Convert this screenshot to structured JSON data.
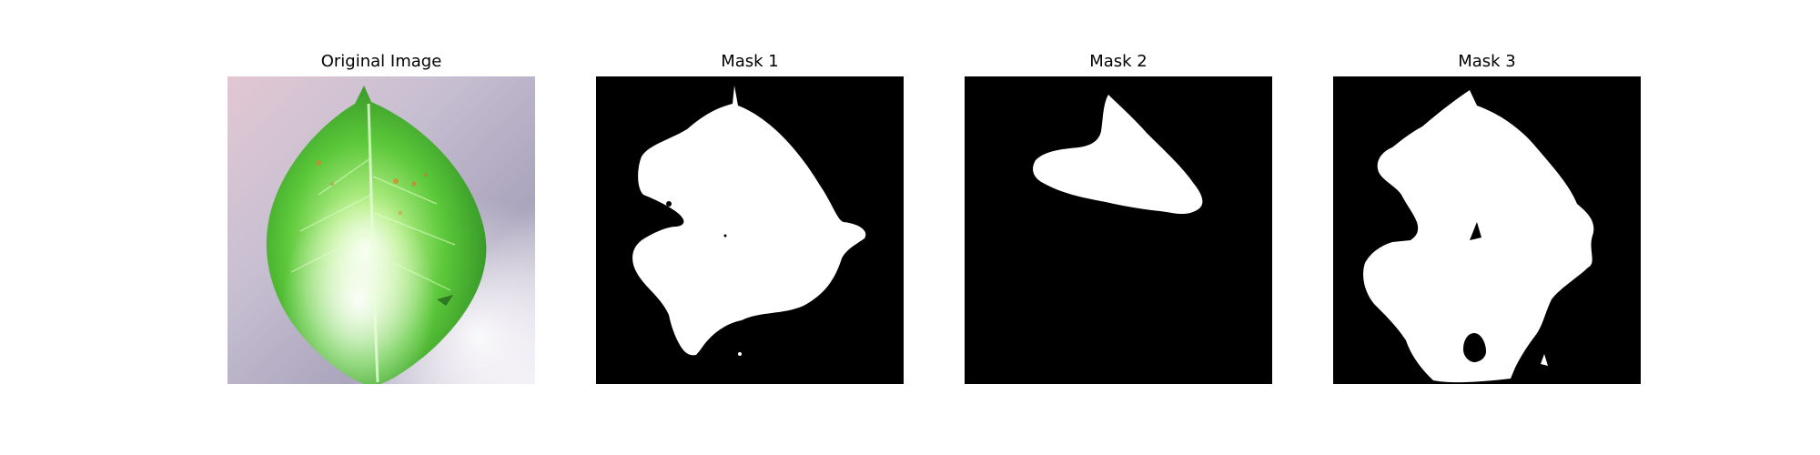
{
  "panels": [
    {
      "title": "Original Image"
    },
    {
      "title": "Mask 1"
    },
    {
      "title": "Mask 2"
    },
    {
      "title": "Mask 3"
    }
  ]
}
